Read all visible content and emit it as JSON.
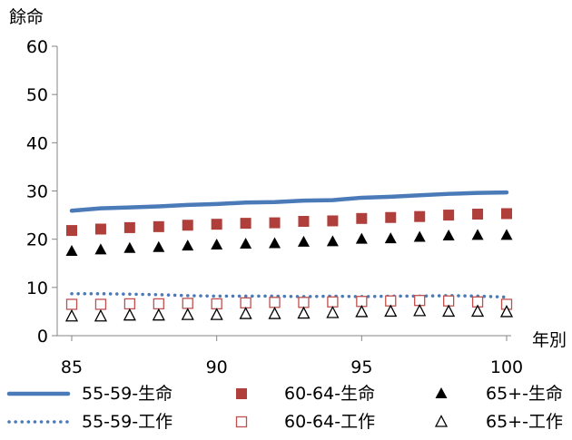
{
  "chart_data": {
    "type": "line",
    "ylabel": "餘命",
    "xlabel": "年別",
    "xlim": [
      85,
      100
    ],
    "ylim": [
      0,
      60
    ],
    "x_ticks": [
      "85",
      "90",
      "95",
      "100"
    ],
    "y_ticks": [
      "0",
      "10",
      "20",
      "30",
      "40",
      "50",
      "60"
    ],
    "grid": false,
    "legend_position": "bottom",
    "x": [
      85,
      86,
      87,
      88,
      89,
      90,
      91,
      92,
      93,
      94,
      95,
      96,
      97,
      98,
      99,
      100
    ],
    "series": [
      {
        "name": "55-59-生命",
        "style": "solid-line",
        "color": "#4a7ab8",
        "values": [
          25.9,
          26.4,
          26.6,
          26.8,
          27.1,
          27.3,
          27.6,
          27.7,
          28.0,
          28.1,
          28.6,
          28.8,
          29.1,
          29.4,
          29.6,
          29.7
        ]
      },
      {
        "name": "60-64-生命",
        "style": "filled-square",
        "color": "#b03f3b",
        "values": [
          21.8,
          22.1,
          22.4,
          22.6,
          22.9,
          23.1,
          23.3,
          23.4,
          23.7,
          23.8,
          24.3,
          24.5,
          24.7,
          25.0,
          25.2,
          25.3
        ]
      },
      {
        "name": "65+-生命",
        "style": "filled-triangle",
        "color": "#000000",
        "values": [
          17.5,
          17.8,
          18.1,
          18.3,
          18.6,
          18.8,
          19.0,
          19.1,
          19.4,
          19.5,
          20.0,
          20.1,
          20.4,
          20.7,
          20.8,
          20.8
        ]
      },
      {
        "name": "55-59-工作",
        "style": "dotted-line",
        "color": "#4a7ab8",
        "values": [
          8.7,
          8.7,
          8.6,
          8.5,
          8.3,
          8.2,
          8.2,
          8.2,
          8.1,
          8.2,
          8.1,
          8.2,
          8.2,
          8.3,
          8.2,
          8.0
        ]
      },
      {
        "name": "60-64-工作",
        "style": "hollow-square",
        "color": "#c0504d",
        "values": [
          6.5,
          6.5,
          6.6,
          6.6,
          6.7,
          6.6,
          6.8,
          6.9,
          6.9,
          7.0,
          7.1,
          7.2,
          7.3,
          7.2,
          7.0,
          6.5
        ]
      },
      {
        "name": "65+-工作",
        "style": "hollow-triangle",
        "color": "#000000",
        "values": [
          4.0,
          4.0,
          4.2,
          4.2,
          4.3,
          4.3,
          4.5,
          4.5,
          4.6,
          4.7,
          4.9,
          5.0,
          5.1,
          5.0,
          5.0,
          4.9
        ]
      }
    ]
  }
}
